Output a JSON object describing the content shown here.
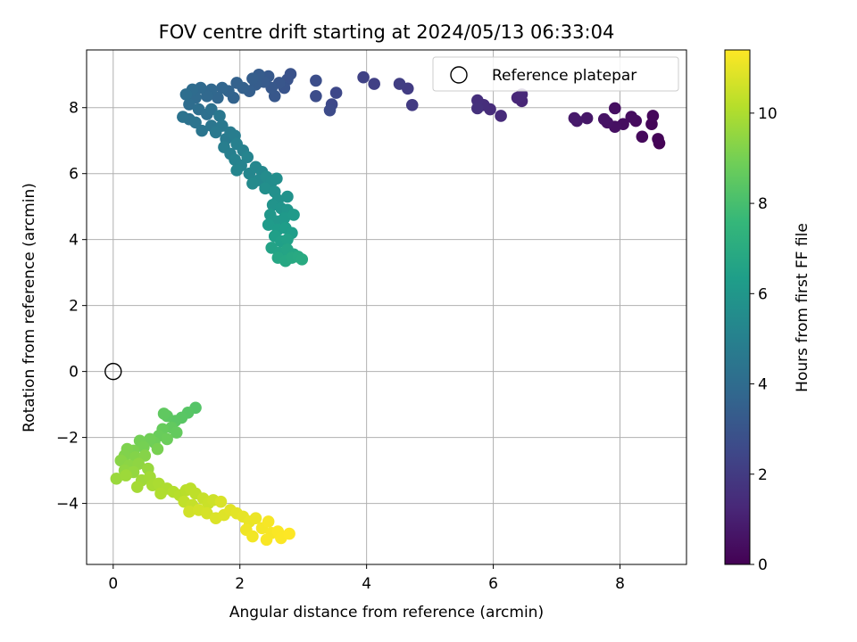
{
  "chart_data": {
    "type": "scatter",
    "title": "FOV centre drift starting at 2024/05/13 06:33:04",
    "xlabel": "Angular distance from reference (arcmin)",
    "ylabel": "Rotation from reference (arcmin)",
    "xlim": [
      -0.42,
      9.05
    ],
    "ylim": [
      -5.85,
      9.75
    ],
    "xticks": [
      0,
      2,
      4,
      6,
      8
    ],
    "xtick_labels": [
      "0",
      "2",
      "4",
      "6",
      "8"
    ],
    "yticks": [
      -4,
      -2,
      0,
      2,
      4,
      6,
      8
    ],
    "ytick_labels": [
      "−4",
      "−2",
      "0",
      "2",
      "4",
      "6",
      "8"
    ],
    "grid": true,
    "legend": {
      "position": "top-right",
      "label": "Reference platepar"
    },
    "reference_point": {
      "x": 0,
      "y": 0
    },
    "colorbar": {
      "label": "Hours from first FF file",
      "range": [
        0,
        11.4
      ],
      "ticks": [
        0,
        2,
        4,
        6,
        8,
        10
      ],
      "tick_labels": [
        "0",
        "2",
        "4",
        "6",
        "8",
        "10"
      ],
      "colormap": "viridis",
      "stops": [
        "#440154",
        "#482878",
        "#3e4989",
        "#31688e",
        "#26828e",
        "#1f9e89",
        "#35b779",
        "#6ece58",
        "#b5de2b",
        "#fde725"
      ]
    },
    "points": [
      {
        "x": 8.62,
        "y": 6.92,
        "h": 0.05
      },
      {
        "x": 8.6,
        "y": 7.05,
        "h": 0.1
      },
      {
        "x": 8.5,
        "y": 7.5,
        "h": 0.15
      },
      {
        "x": 8.52,
        "y": 7.75,
        "h": 0.2
      },
      {
        "x": 8.35,
        "y": 7.12,
        "h": 0.25
      },
      {
        "x": 8.25,
        "y": 7.6,
        "h": 0.3
      },
      {
        "x": 8.18,
        "y": 7.72,
        "h": 0.35
      },
      {
        "x": 8.05,
        "y": 7.5,
        "h": 0.4
      },
      {
        "x": 7.92,
        "y": 7.98,
        "h": 0.45
      },
      {
        "x": 7.92,
        "y": 7.42,
        "h": 0.5
      },
      {
        "x": 7.8,
        "y": 7.55,
        "h": 0.55
      },
      {
        "x": 7.75,
        "y": 7.65,
        "h": 0.6
      },
      {
        "x": 7.48,
        "y": 7.68,
        "h": 0.7
      },
      {
        "x": 7.32,
        "y": 7.6,
        "h": 0.75
      },
      {
        "x": 7.28,
        "y": 7.68,
        "h": 0.8
      },
      {
        "x": 6.45,
        "y": 8.2,
        "h": 1.2
      },
      {
        "x": 6.38,
        "y": 8.3,
        "h": 1.25
      },
      {
        "x": 6.45,
        "y": 8.4,
        "h": 1.3
      },
      {
        "x": 6.12,
        "y": 7.75,
        "h": 1.4
      },
      {
        "x": 5.95,
        "y": 7.95,
        "h": 1.45
      },
      {
        "x": 5.85,
        "y": 8.08,
        "h": 1.5
      },
      {
        "x": 5.75,
        "y": 8.22,
        "h": 1.55
      },
      {
        "x": 5.75,
        "y": 7.98,
        "h": 1.6
      },
      {
        "x": 4.72,
        "y": 8.08,
        "h": 2.0
      },
      {
        "x": 4.65,
        "y": 8.58,
        "h": 2.05
      },
      {
        "x": 4.52,
        "y": 8.72,
        "h": 2.1
      },
      {
        "x": 4.12,
        "y": 8.72,
        "h": 2.2
      },
      {
        "x": 3.95,
        "y": 8.92,
        "h": 2.25
      },
      {
        "x": 3.52,
        "y": 8.45,
        "h": 2.5
      },
      {
        "x": 3.45,
        "y": 8.1,
        "h": 2.55
      },
      {
        "x": 3.42,
        "y": 7.92,
        "h": 2.6
      },
      {
        "x": 3.2,
        "y": 8.35,
        "h": 2.7
      },
      {
        "x": 3.2,
        "y": 8.82,
        "h": 2.75
      },
      {
        "x": 2.8,
        "y": 9.02,
        "h": 2.9
      },
      {
        "x": 2.75,
        "y": 8.85,
        "h": 2.95
      },
      {
        "x": 2.7,
        "y": 8.6,
        "h": 3.0
      },
      {
        "x": 2.62,
        "y": 8.75,
        "h": 3.05
      },
      {
        "x": 2.55,
        "y": 8.35,
        "h": 3.1
      },
      {
        "x": 2.5,
        "y": 8.6,
        "h": 3.15
      },
      {
        "x": 2.45,
        "y": 8.95,
        "h": 3.2
      },
      {
        "x": 2.38,
        "y": 8.78,
        "h": 3.25
      },
      {
        "x": 2.3,
        "y": 9.0,
        "h": 3.3
      },
      {
        "x": 2.25,
        "y": 8.7,
        "h": 3.35
      },
      {
        "x": 2.2,
        "y": 8.88,
        "h": 3.4
      },
      {
        "x": 2.15,
        "y": 8.5,
        "h": 3.45
      },
      {
        "x": 2.05,
        "y": 8.6,
        "h": 3.5
      },
      {
        "x": 1.95,
        "y": 8.75,
        "h": 3.55
      },
      {
        "x": 1.9,
        "y": 8.3,
        "h": 3.6
      },
      {
        "x": 1.82,
        "y": 8.5,
        "h": 3.65
      },
      {
        "x": 1.72,
        "y": 8.6,
        "h": 3.7
      },
      {
        "x": 1.65,
        "y": 8.3,
        "h": 3.75
      },
      {
        "x": 1.55,
        "y": 8.55,
        "h": 3.8
      },
      {
        "x": 1.48,
        "y": 8.35,
        "h": 3.85
      },
      {
        "x": 1.38,
        "y": 8.6,
        "h": 3.9
      },
      {
        "x": 1.3,
        "y": 8.3,
        "h": 3.95
      },
      {
        "x": 1.25,
        "y": 8.55,
        "h": 4.0
      },
      {
        "x": 1.2,
        "y": 8.1,
        "h": 4.05
      },
      {
        "x": 1.15,
        "y": 8.4,
        "h": 4.1
      },
      {
        "x": 1.35,
        "y": 7.95,
        "h": 4.15
      },
      {
        "x": 1.48,
        "y": 7.8,
        "h": 4.2
      },
      {
        "x": 1.55,
        "y": 7.95,
        "h": 4.25
      },
      {
        "x": 1.2,
        "y": 7.65,
        "h": 4.3
      },
      {
        "x": 1.1,
        "y": 7.72,
        "h": 4.35
      },
      {
        "x": 1.3,
        "y": 7.55,
        "h": 4.4
      },
      {
        "x": 1.4,
        "y": 7.3,
        "h": 4.45
      },
      {
        "x": 1.55,
        "y": 7.45,
        "h": 4.5
      },
      {
        "x": 1.68,
        "y": 7.75,
        "h": 4.55
      },
      {
        "x": 1.72,
        "y": 7.45,
        "h": 4.6
      },
      {
        "x": 1.62,
        "y": 7.25,
        "h": 4.65
      },
      {
        "x": 1.78,
        "y": 7.05,
        "h": 4.7
      },
      {
        "x": 1.85,
        "y": 7.25,
        "h": 4.75
      },
      {
        "x": 1.92,
        "y": 7.15,
        "h": 4.8
      },
      {
        "x": 1.75,
        "y": 6.8,
        "h": 4.85
      },
      {
        "x": 1.85,
        "y": 6.6,
        "h": 4.9
      },
      {
        "x": 1.95,
        "y": 6.9,
        "h": 4.95
      },
      {
        "x": 2.05,
        "y": 6.7,
        "h": 5.0
      },
      {
        "x": 1.92,
        "y": 6.42,
        "h": 5.05
      },
      {
        "x": 2.02,
        "y": 6.25,
        "h": 5.1
      },
      {
        "x": 2.12,
        "y": 6.5,
        "h": 5.15
      },
      {
        "x": 1.95,
        "y": 6.1,
        "h": 5.2
      },
      {
        "x": 2.15,
        "y": 6.0,
        "h": 5.25
      },
      {
        "x": 2.25,
        "y": 6.2,
        "h": 5.3
      },
      {
        "x": 2.35,
        "y": 6.05,
        "h": 5.35
      },
      {
        "x": 2.3,
        "y": 5.8,
        "h": 5.4
      },
      {
        "x": 2.2,
        "y": 5.7,
        "h": 5.45
      },
      {
        "x": 2.42,
        "y": 5.9,
        "h": 5.5
      },
      {
        "x": 2.5,
        "y": 5.75,
        "h": 5.55
      },
      {
        "x": 2.58,
        "y": 5.85,
        "h": 5.6
      },
      {
        "x": 2.4,
        "y": 5.55,
        "h": 5.65
      },
      {
        "x": 2.55,
        "y": 5.45,
        "h": 5.7
      },
      {
        "x": 2.6,
        "y": 5.2,
        "h": 5.75
      },
      {
        "x": 2.75,
        "y": 5.3,
        "h": 5.8
      },
      {
        "x": 2.52,
        "y": 5.05,
        "h": 5.85
      },
      {
        "x": 2.65,
        "y": 4.95,
        "h": 5.9
      },
      {
        "x": 2.75,
        "y": 4.9,
        "h": 5.95
      },
      {
        "x": 2.48,
        "y": 4.75,
        "h": 6.0
      },
      {
        "x": 2.58,
        "y": 4.55,
        "h": 6.05
      },
      {
        "x": 2.7,
        "y": 4.65,
        "h": 6.1
      },
      {
        "x": 2.85,
        "y": 4.75,
        "h": 6.15
      },
      {
        "x": 2.45,
        "y": 4.45,
        "h": 6.2
      },
      {
        "x": 2.6,
        "y": 4.3,
        "h": 6.25
      },
      {
        "x": 2.72,
        "y": 4.35,
        "h": 6.3
      },
      {
        "x": 2.82,
        "y": 4.2,
        "h": 6.35
      },
      {
        "x": 2.55,
        "y": 4.1,
        "h": 6.4
      },
      {
        "x": 2.65,
        "y": 3.95,
        "h": 6.45
      },
      {
        "x": 2.75,
        "y": 4.0,
        "h": 6.5
      },
      {
        "x": 2.5,
        "y": 3.75,
        "h": 6.55
      },
      {
        "x": 2.62,
        "y": 3.6,
        "h": 6.6
      },
      {
        "x": 2.75,
        "y": 3.7,
        "h": 6.65
      },
      {
        "x": 2.85,
        "y": 3.55,
        "h": 6.7
      },
      {
        "x": 2.6,
        "y": 3.45,
        "h": 6.75
      },
      {
        "x": 2.72,
        "y": 3.35,
        "h": 6.8
      },
      {
        "x": 2.82,
        "y": 3.45,
        "h": 6.85
      },
      {
        "x": 2.92,
        "y": 3.48,
        "h": 6.9
      },
      {
        "x": 2.98,
        "y": 3.4,
        "h": 6.95
      },
      {
        "x": 1.3,
        "y": -1.1,
        "h": 8.3
      },
      {
        "x": 1.18,
        "y": -1.25,
        "h": 8.35
      },
      {
        "x": 1.08,
        "y": -1.4,
        "h": 8.4
      },
      {
        "x": 0.98,
        "y": -1.5,
        "h": 8.45
      },
      {
        "x": 0.85,
        "y": -1.35,
        "h": 8.5
      },
      {
        "x": 0.8,
        "y": -1.28,
        "h": 8.55
      },
      {
        "x": 0.92,
        "y": -1.7,
        "h": 8.6
      },
      {
        "x": 1.0,
        "y": -1.85,
        "h": 8.65
      },
      {
        "x": 0.78,
        "y": -1.75,
        "h": 8.7
      },
      {
        "x": 0.72,
        "y": -1.95,
        "h": 8.75
      },
      {
        "x": 0.85,
        "y": -2.05,
        "h": 8.8
      },
      {
        "x": 0.65,
        "y": -2.15,
        "h": 8.85
      },
      {
        "x": 0.58,
        "y": -2.05,
        "h": 8.9
      },
      {
        "x": 0.42,
        "y": -2.1,
        "h": 8.95
      },
      {
        "x": 0.48,
        "y": -2.3,
        "h": 9.0
      },
      {
        "x": 0.7,
        "y": -2.35,
        "h": 9.05
      },
      {
        "x": 0.32,
        "y": -2.4,
        "h": 9.1
      },
      {
        "x": 0.22,
        "y": -2.35,
        "h": 9.15
      },
      {
        "x": 0.18,
        "y": -2.55,
        "h": 9.2
      },
      {
        "x": 0.35,
        "y": -2.6,
        "h": 9.25
      },
      {
        "x": 0.5,
        "y": -2.55,
        "h": 9.3
      },
      {
        "x": 0.12,
        "y": -2.7,
        "h": 9.35
      },
      {
        "x": 0.25,
        "y": -2.85,
        "h": 9.4
      },
      {
        "x": 0.4,
        "y": -2.8,
        "h": 9.45
      },
      {
        "x": 0.18,
        "y": -3.0,
        "h": 9.5
      },
      {
        "x": 0.32,
        "y": -3.05,
        "h": 9.55
      },
      {
        "x": 0.55,
        "y": -2.95,
        "h": 9.6
      },
      {
        "x": 0.05,
        "y": -3.25,
        "h": 9.65
      },
      {
        "x": 0.2,
        "y": -3.15,
        "h": 9.7
      },
      {
        "x": 0.45,
        "y": -3.3,
        "h": 9.75
      },
      {
        "x": 0.58,
        "y": -3.2,
        "h": 9.8
      },
      {
        "x": 0.38,
        "y": -3.5,
        "h": 9.85
      },
      {
        "x": 0.62,
        "y": -3.45,
        "h": 9.9
      },
      {
        "x": 0.72,
        "y": -3.4,
        "h": 9.95
      },
      {
        "x": 0.85,
        "y": -3.55,
        "h": 10.0
      },
      {
        "x": 0.75,
        "y": -3.7,
        "h": 10.05
      },
      {
        "x": 0.95,
        "y": -3.65,
        "h": 10.1
      },
      {
        "x": 1.05,
        "y": -3.75,
        "h": 10.15
      },
      {
        "x": 1.15,
        "y": -3.6,
        "h": 10.2
      },
      {
        "x": 1.22,
        "y": -3.55,
        "h": 10.25
      },
      {
        "x": 1.3,
        "y": -3.7,
        "h": 10.3
      },
      {
        "x": 1.12,
        "y": -3.95,
        "h": 10.35
      },
      {
        "x": 1.25,
        "y": -4.05,
        "h": 10.4
      },
      {
        "x": 1.42,
        "y": -3.85,
        "h": 10.45
      },
      {
        "x": 1.5,
        "y": -4.0,
        "h": 10.5
      },
      {
        "x": 1.58,
        "y": -3.9,
        "h": 10.55
      },
      {
        "x": 1.2,
        "y": -4.25,
        "h": 10.6
      },
      {
        "x": 1.35,
        "y": -4.2,
        "h": 10.65
      },
      {
        "x": 1.48,
        "y": -4.3,
        "h": 10.7
      },
      {
        "x": 1.7,
        "y": -3.95,
        "h": 10.75
      },
      {
        "x": 1.62,
        "y": -4.45,
        "h": 10.8
      },
      {
        "x": 1.75,
        "y": -4.35,
        "h": 10.85
      },
      {
        "x": 1.85,
        "y": -4.2,
        "h": 10.9
      },
      {
        "x": 1.95,
        "y": -4.3,
        "h": 10.95
      },
      {
        "x": 2.05,
        "y": -4.4,
        "h": 11.0
      },
      {
        "x": 2.15,
        "y": -4.55,
        "h": 11.05
      },
      {
        "x": 2.25,
        "y": -4.45,
        "h": 11.1
      },
      {
        "x": 2.1,
        "y": -4.8,
        "h": 11.15
      },
      {
        "x": 2.2,
        "y": -5.0,
        "h": 11.2
      },
      {
        "x": 2.35,
        "y": -4.75,
        "h": 11.25
      },
      {
        "x": 2.45,
        "y": -4.55,
        "h": 11.28
      },
      {
        "x": 2.5,
        "y": -4.9,
        "h": 11.3
      },
      {
        "x": 2.42,
        "y": -5.1,
        "h": 11.32
      },
      {
        "x": 2.6,
        "y": -4.85,
        "h": 11.34
      },
      {
        "x": 2.65,
        "y": -5.05,
        "h": 11.36
      },
      {
        "x": 2.78,
        "y": -4.92,
        "h": 11.4
      }
    ]
  }
}
